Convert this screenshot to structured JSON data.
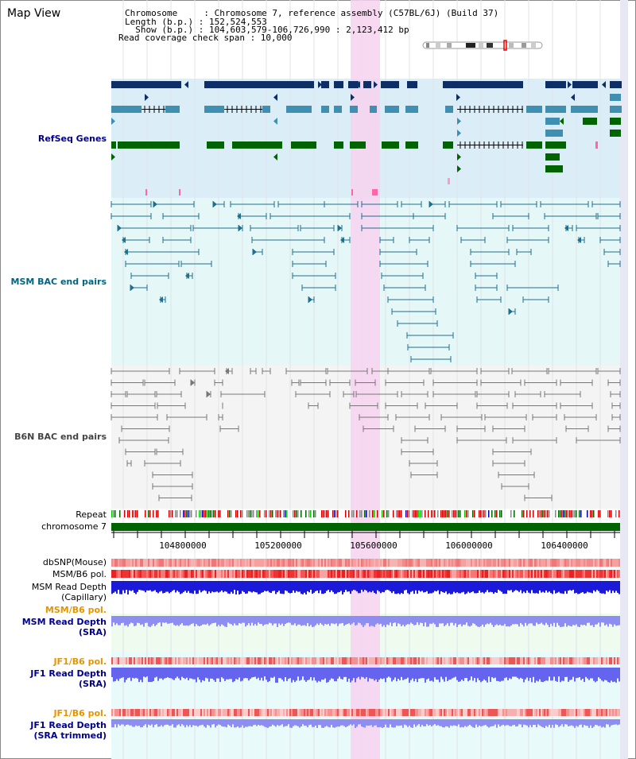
{
  "header": {
    "title": "Map View",
    "info": [
      "Chromosome     : Chromosome 7, reference assembly (C57BL/6J) (Build 37)",
      "Length (b.p.) : 152,524,553",
      "  Show (b.p.) : 104,603,579-106,726,990 : 2,123,412 bp",
      "Read coverage check span : 10,000"
    ]
  },
  "tracks": {
    "refseq": "RefSeq Genes",
    "msm_bac": "MSM BAC end pairs",
    "b6n_bac": "B6N BAC end pairs",
    "repeat": "Repeat",
    "chromosome": "chromosome 7",
    "dbsnp": "dbSNP(Mouse)",
    "msm_pol1": "MSM/B6 pol.",
    "msm_depth_cap_1": "MSM Read Depth",
    "msm_depth_cap_2": "(Capillary)",
    "msm_pol2": "MSM/B6 pol.",
    "msm_depth_sra_1": "MSM Read Depth",
    "msm_depth_sra_2": "(SRA)",
    "jf1_pol1": "JF1/B6 pol.",
    "jf1_depth_sra_1": "JF1 Read Depth",
    "jf1_depth_sra_2": "(SRA)",
    "jf1_pol2": "JF1/B6 pol.",
    "jf1_depth_trim_1": "JF1 Read Depth",
    "jf1_depth_trim_2": "(SRA trimmed)"
  },
  "axis": {
    "ticks": [
      "104800000",
      "105200000",
      "105600000",
      "106000000",
      "106400000"
    ]
  },
  "colors": {
    "refseq_bg": "#dbeef8",
    "msm_bg": "#e6f7f7",
    "b6n_bg": "#f4f4f4",
    "highlight": "#f7d2f0",
    "gene_dark": "#0d2f66",
    "gene_mid": "#3f8fb3",
    "gene_green": "#006400",
    "msm_line": "#1f6f8f",
    "b6n_line": "#777777",
    "label_blue": "#00008b",
    "label_teal": "#006680",
    "label_orange": "#e69500"
  }
}
